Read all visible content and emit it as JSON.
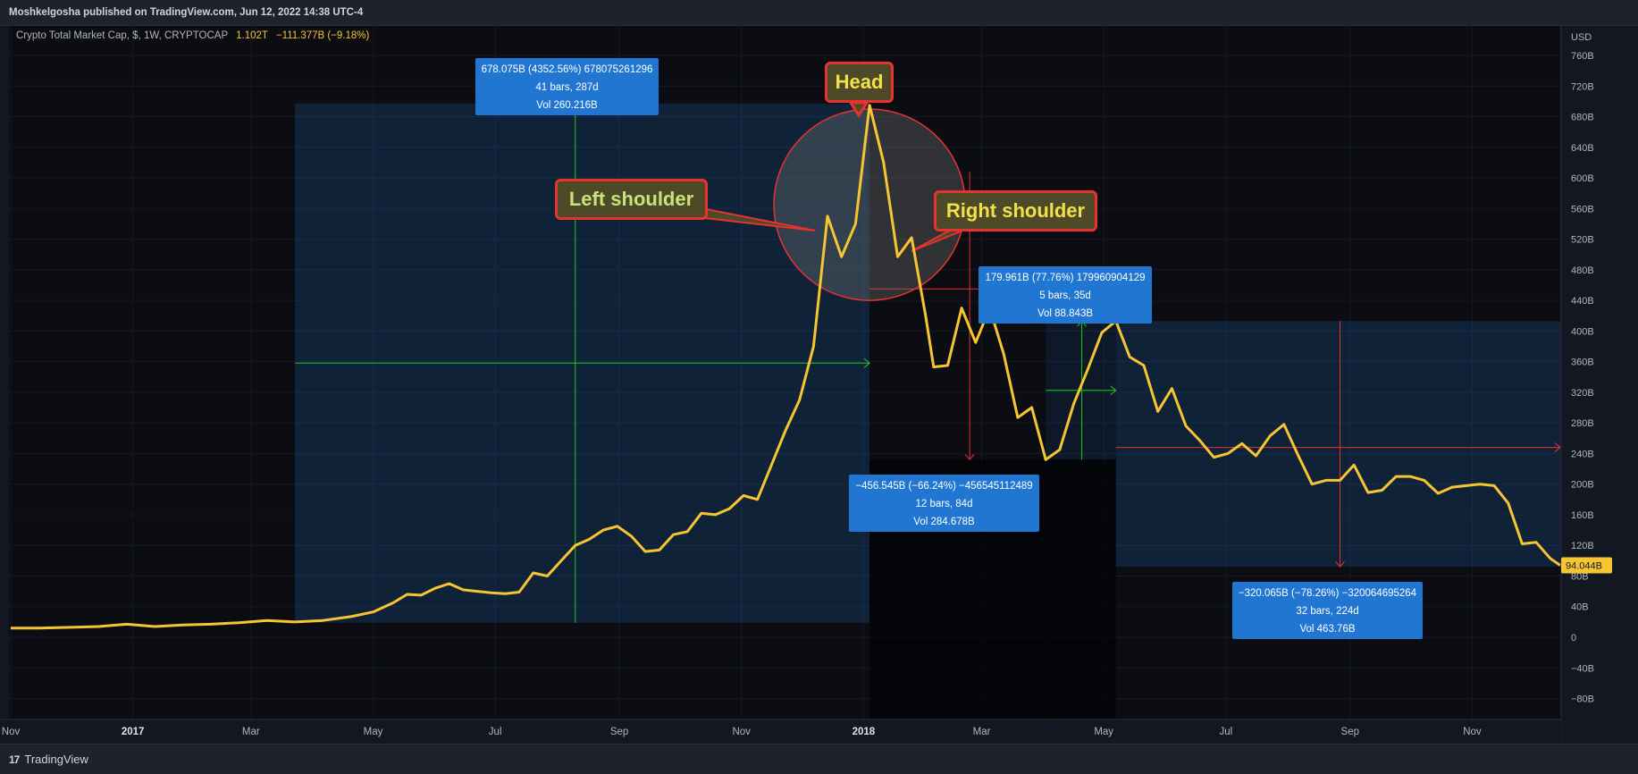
{
  "header": {
    "published": "Moshkelgosha published on TradingView.com, Jun 12, 2022 14:38 UTC-4"
  },
  "legend": {
    "symbol": "Crypto Total Market Cap, $, 1W, CRYPTOCAP",
    "value": "1.102T",
    "change": "−111.377B (−9.18%)"
  },
  "footer": {
    "brand": "TradingView"
  },
  "colors": {
    "background": "#131722",
    "line": "#f7c531",
    "box": "#2176d2",
    "up": "#22c522",
    "down": "#e8322f"
  },
  "infoboxes": [
    {
      "line1": "678.075B (4352.56%) 678075261296",
      "line2": "41 bars, 287d",
      "line3": "Vol 260.216B"
    },
    {
      "line1": "179.961B (77.76%) 179960904129",
      "line2": "5 bars, 35d",
      "line3": "Vol 88.843B"
    },
    {
      "line1": "−456.545B (−66.24%) −456545112489",
      "line2": "12 bars, 84d",
      "line3": "Vol 284.678B"
    },
    {
      "line1": "−320.065B (−78.26%) −320064695264",
      "line2": "32 bars, 224d",
      "line3": "Vol 463.76B"
    }
  ],
  "callouts": {
    "head": "Head",
    "left_shoulder": "Left shoulder",
    "right_shoulder": "Right shoulder"
  },
  "chart_data": {
    "type": "line",
    "title": "Crypto Total Market Cap, $, 1W, CRYPTOCAP",
    "ylabel": "USD",
    "y_unit": "USD",
    "ylim": [
      -105,
      770
    ],
    "y_ticks": [
      {
        "v": 760,
        "label": "760B"
      },
      {
        "v": 720,
        "label": "720B"
      },
      {
        "v": 680,
        "label": "680B"
      },
      {
        "v": 640,
        "label": "640B"
      },
      {
        "v": 600,
        "label": "600B"
      },
      {
        "v": 560,
        "label": "560B"
      },
      {
        "v": 520,
        "label": "520B"
      },
      {
        "v": 480,
        "label": "480B"
      },
      {
        "v": 440,
        "label": "440B"
      },
      {
        "v": 400,
        "label": "400B"
      },
      {
        "v": 360,
        "label": "360B"
      },
      {
        "v": 320,
        "label": "320B"
      },
      {
        "v": 280,
        "label": "280B"
      },
      {
        "v": 240,
        "label": "240B"
      },
      {
        "v": 200,
        "label": "200B"
      },
      {
        "v": 160,
        "label": "160B"
      },
      {
        "v": 120,
        "label": "120B"
      },
      {
        "v": 80,
        "label": "80B"
      },
      {
        "v": 40,
        "label": "40B"
      },
      {
        "v": 0,
        "label": "0"
      },
      {
        "v": -40,
        "label": "−40B"
      },
      {
        "v": -80,
        "label": "−80B"
      }
    ],
    "x_ticks": [
      {
        "date": "2016-11-01",
        "label": "Nov"
      },
      {
        "date": "2017-01-01",
        "label": "2017",
        "bold": true
      },
      {
        "date": "2017-03-01",
        "label": "Mar"
      },
      {
        "date": "2017-05-01",
        "label": "May"
      },
      {
        "date": "2017-07-01",
        "label": "Jul"
      },
      {
        "date": "2017-09-01",
        "label": "Sep"
      },
      {
        "date": "2017-11-01",
        "label": "Nov"
      },
      {
        "date": "2018-01-01",
        "label": "2018",
        "bold": true
      },
      {
        "date": "2018-03-01",
        "label": "Mar"
      },
      {
        "date": "2018-05-01",
        "label": "May"
      },
      {
        "date": "2018-07-01",
        "label": "Jul"
      },
      {
        "date": "2018-09-01",
        "label": "Sep"
      },
      {
        "date": "2018-11-01",
        "label": "Nov"
      }
    ],
    "last_price_label": "94.044B",
    "last_price": 94,
    "series": [
      {
        "points": [
          [
            "2016-11-01",
            12
          ],
          [
            "2016-11-15",
            12
          ],
          [
            "2016-12-01",
            13
          ],
          [
            "2016-12-15",
            14
          ],
          [
            "2016-12-29",
            17
          ],
          [
            "2017-01-12",
            14
          ],
          [
            "2017-01-26",
            16
          ],
          [
            "2017-02-09",
            17
          ],
          [
            "2017-02-23",
            19
          ],
          [
            "2017-03-09",
            22
          ],
          [
            "2017-03-23",
            20
          ],
          [
            "2017-04-06",
            22
          ],
          [
            "2017-04-20",
            27
          ],
          [
            "2017-05-01",
            33
          ],
          [
            "2017-05-11",
            45
          ],
          [
            "2017-05-18",
            56
          ],
          [
            "2017-05-25",
            55
          ],
          [
            "2017-06-01",
            64
          ],
          [
            "2017-06-08",
            70
          ],
          [
            "2017-06-15",
            62
          ],
          [
            "2017-06-22",
            60
          ],
          [
            "2017-06-29",
            58
          ],
          [
            "2017-07-06",
            57
          ],
          [
            "2017-07-13",
            59
          ],
          [
            "2017-07-20",
            84
          ],
          [
            "2017-07-27",
            80
          ],
          [
            "2017-08-03",
            100
          ],
          [
            "2017-08-10",
            120
          ],
          [
            "2017-08-17",
            128
          ],
          [
            "2017-08-24",
            140
          ],
          [
            "2017-08-31",
            145
          ],
          [
            "2017-09-07",
            132
          ],
          [
            "2017-09-14",
            112
          ],
          [
            "2017-09-21",
            114
          ],
          [
            "2017-09-28",
            134
          ],
          [
            "2017-10-05",
            138
          ],
          [
            "2017-10-12",
            162
          ],
          [
            "2017-10-19",
            160
          ],
          [
            "2017-10-26",
            168
          ],
          [
            "2017-11-02",
            185
          ],
          [
            "2017-11-09",
            180
          ],
          [
            "2017-11-16",
            225
          ],
          [
            "2017-11-23",
            270
          ],
          [
            "2017-11-30",
            310
          ],
          [
            "2017-12-07",
            380
          ],
          [
            "2017-12-14",
            550
          ],
          [
            "2017-12-21",
            497
          ],
          [
            "2017-12-28",
            540
          ],
          [
            "2018-01-04",
            695
          ],
          [
            "2018-01-11",
            620
          ],
          [
            "2018-01-18",
            497
          ],
          [
            "2018-01-25",
            522
          ],
          [
            "2018-02-01",
            420
          ],
          [
            "2018-02-05",
            353
          ],
          [
            "2018-02-12",
            355
          ],
          [
            "2018-02-19",
            430
          ],
          [
            "2018-02-26",
            385
          ],
          [
            "2018-03-05",
            430
          ],
          [
            "2018-03-12",
            370
          ],
          [
            "2018-03-19",
            287
          ],
          [
            "2018-03-26",
            300
          ],
          [
            "2018-04-02",
            232
          ],
          [
            "2018-04-09",
            245
          ],
          [
            "2018-04-16",
            305
          ],
          [
            "2018-04-23",
            350
          ],
          [
            "2018-04-30",
            398
          ],
          [
            "2018-05-07",
            413
          ],
          [
            "2018-05-14",
            366
          ],
          [
            "2018-05-21",
            355
          ],
          [
            "2018-05-28",
            295
          ],
          [
            "2018-06-04",
            325
          ],
          [
            "2018-06-11",
            276
          ],
          [
            "2018-06-18",
            257
          ],
          [
            "2018-06-25",
            235
          ],
          [
            "2018-07-02",
            240
          ],
          [
            "2018-07-09",
            253
          ],
          [
            "2018-07-16",
            237
          ],
          [
            "2018-07-23",
            263
          ],
          [
            "2018-07-30",
            278
          ],
          [
            "2018-08-06",
            238
          ],
          [
            "2018-08-13",
            200
          ],
          [
            "2018-08-20",
            205
          ],
          [
            "2018-08-27",
            205
          ],
          [
            "2018-09-03",
            225
          ],
          [
            "2018-09-10",
            189
          ],
          [
            "2018-09-17",
            192
          ],
          [
            "2018-09-24",
            210
          ],
          [
            "2018-10-01",
            210
          ],
          [
            "2018-10-08",
            205
          ],
          [
            "2018-10-15",
            188
          ],
          [
            "2018-10-22",
            196
          ],
          [
            "2018-10-29",
            198
          ],
          [
            "2018-11-05",
            200
          ],
          [
            "2018-11-12",
            198
          ],
          [
            "2018-11-19",
            175
          ],
          [
            "2018-11-26",
            122
          ],
          [
            "2018-12-03",
            124
          ],
          [
            "2018-12-10",
            103
          ],
          [
            "2018-12-15",
            94
          ]
        ]
      }
    ],
    "measure_boxes": [
      {
        "from": [
          "2017-03-23",
          19
        ],
        "to": [
          "2018-01-04",
          695
        ],
        "trend": "up",
        "anchor_date": "2017-08-10"
      },
      {
        "from": [
          "2018-04-02",
          232
        ],
        "to": [
          "2018-05-07",
          413
        ],
        "trend": "up",
        "anchor_date": "2018-04-20"
      },
      {
        "from": [
          "2017-11-30",
          232
        ],
        "to": [
          "2018-04-02",
          232
        ],
        "trend": "down",
        "fill_from": [
          "2018-01-04",
          232
        ],
        "fill_to": [
          "2018-04-02",
          -105
        ],
        "anchor_date": "2018-02-23"
      },
      {
        "from": [
          "2018-05-07",
          413
        ],
        "to": [
          "2018-12-15",
          92
        ],
        "trend": "down",
        "anchor_date": "2018-08-27"
      }
    ],
    "head_circle": {
      "center": [
        "2018-01-04",
        565
      ],
      "radius_y_units": 125
    },
    "grid": true,
    "grid_axis": "x and y"
  }
}
